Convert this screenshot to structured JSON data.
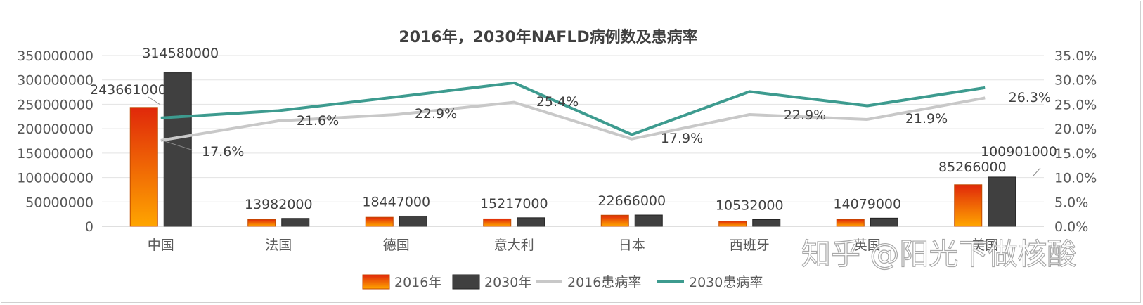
{
  "chart_data": {
    "type": "bar",
    "title": "2016年，2030年NAFLD病例数及患病率",
    "categories": [
      "中国",
      "法国",
      "德国",
      "意大利",
      "日本",
      "西班牙",
      "英国",
      "美国"
    ],
    "series": [
      {
        "name": "2016年",
        "kind": "bar",
        "axis": "left",
        "color": "#e8720c",
        "values": [
          243661000,
          13982000,
          18447000,
          15217000,
          22666000,
          10532000,
          14079000,
          85266000
        ]
      },
      {
        "name": "2030年",
        "kind": "bar",
        "axis": "left",
        "color": "#404040",
        "values": [
          314580000,
          16200000,
          20900000,
          17500000,
          23000000,
          13800000,
          16800000,
          100901000
        ]
      },
      {
        "name": "2016患病率",
        "kind": "line",
        "axis": "right",
        "color": "#c8c8c8",
        "values": [
          17.6,
          21.6,
          22.9,
          25.4,
          17.9,
          22.9,
          21.9,
          26.3
        ]
      },
      {
        "name": "2030患病率",
        "kind": "line",
        "axis": "right",
        "color": "#3d9b8f",
        "values": [
          22.2,
          23.7,
          26.5,
          29.4,
          18.8,
          27.6,
          24.7,
          28.4
        ]
      }
    ],
    "bar_labels_2016": [
      "243661000",
      "13982000",
      "18447000",
      "15217000",
      "22666000",
      "10532000",
      "14079000",
      "85266000"
    ],
    "bar_labels_2030": [
      "314580000",
      "",
      "",
      "",
      "",
      "",
      "",
      "100901000"
    ],
    "line_labels_2016": [
      "17.6%",
      "21.6%",
      "22.9%",
      "25.4%",
      "17.9%",
      "22.9%",
      "21.9%",
      "26.3%"
    ],
    "y_left": {
      "ylim": [
        0,
        350000000
      ],
      "ticks": [
        "0",
        "50000000",
        "100000000",
        "150000000",
        "200000000",
        "250000000",
        "300000000",
        "350000000"
      ]
    },
    "y_right": {
      "ylim": [
        0,
        35
      ],
      "ticks": [
        "0.0%",
        "5.0%",
        "10.0%",
        "15.0%",
        "20.0%",
        "25.0%",
        "30.0%",
        "35.0%"
      ]
    },
    "grid": true,
    "legend_position": "bottom"
  },
  "watermark": "知乎 @阳光下做核酸"
}
